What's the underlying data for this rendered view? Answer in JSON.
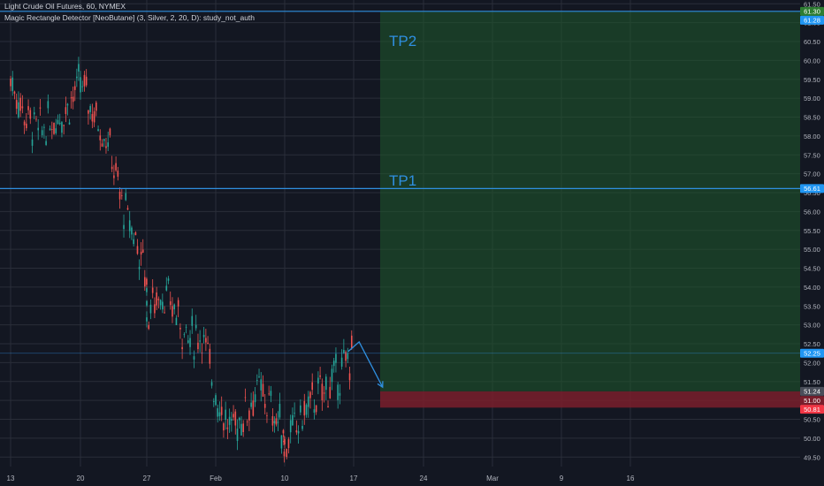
{
  "header": {
    "symbol_title": "Light Crude Oil Futures, 60, NYMEX",
    "indicator_title": "Magic Rectangle Detector [NeoButane] (3, Silver, 2, 20, D): study_not_auth"
  },
  "colors": {
    "background": "#131722",
    "grid": "#2a2e39",
    "candle_up": "#26a69a",
    "candle_down": "#ef5350",
    "target_fill": "#1f5a2b",
    "stop_fill": "#7a1e2c",
    "level_line": "#2f8fe0",
    "annotation_text": "#2f8fe0",
    "axis_text": "#b2b5be",
    "badge_blue": "#2196f3",
    "badge_red": "#f23645",
    "badge_gray": "#4a4e5a",
    "badge_green": "#2e7d32"
  },
  "chart_data": {
    "type": "candlestick",
    "title": "Light Crude Oil Futures, 60, NYMEX",
    "ylim": [
      49.25,
      61.6
    ],
    "y_ticks": [
      "49.50",
      "50.00",
      "50.50",
      "51.00",
      "51.50",
      "52.00",
      "52.50",
      "53.00",
      "53.50",
      "54.00",
      "54.50",
      "55.00",
      "55.50",
      "56.00",
      "56.50",
      "57.00",
      "57.50",
      "58.00",
      "58.50",
      "59.00",
      "59.50",
      "60.00",
      "60.50",
      "61.00",
      "61.50"
    ],
    "x_ticks": [
      "13",
      "20",
      "27",
      "Feb",
      "10",
      "17",
      "24",
      "Mar",
      "9",
      "16"
    ],
    "price_path": [
      [
        "13",
        59.5
      ],
      [
        "14",
        58.6
      ],
      [
        "15",
        58.1
      ],
      [
        "16",
        58.4
      ],
      [
        "17",
        58.7
      ],
      [
        "20",
        59.4
      ],
      [
        "21",
        58.6
      ],
      [
        "22",
        57.9
      ],
      [
        "23",
        56.2
      ],
      [
        "24",
        55.3
      ],
      [
        "25",
        54.2
      ],
      [
        "27",
        53.3
      ],
      [
        "28",
        53.9
      ],
      [
        "29",
        53.4
      ],
      [
        "30",
        52.6
      ],
      [
        "31",
        52.8
      ],
      [
        "Feb",
        51.2
      ],
      [
        "Feb 3",
        50.2
      ],
      [
        "Feb 4",
        50.6
      ],
      [
        "Feb 5",
        51.3
      ],
      [
        "Feb 6",
        50.8
      ],
      [
        "Feb 7",
        50.2
      ],
      [
        "10",
        49.8
      ],
      [
        "Feb 11",
        50.4
      ],
      [
        "Feb 12",
        51.0
      ],
      [
        "Feb 13",
        51.3
      ],
      [
        "Feb 14",
        51.7
      ],
      [
        "17",
        52.3
      ]
    ],
    "horizontal_levels": [
      {
        "label": "TP2",
        "price": 61.3
      },
      {
        "label": "TP1",
        "price": 56.61
      },
      {
        "label": "",
        "price": 52.25
      }
    ],
    "target_zone": {
      "from_price": 51.24,
      "to_price": 61.3
    },
    "stop_zone": {
      "from_price": 50.81,
      "to_price": 51.24
    },
    "annotations": [
      "TP2",
      "TP1"
    ],
    "projection_path": [
      [
        "17",
        52.3
      ],
      [
        "18",
        52.55
      ],
      [
        "19",
        51.35
      ]
    ],
    "price_badges": [
      {
        "text": "61.30",
        "price": 61.3,
        "color": "#2e7d32"
      },
      {
        "text": "61.28",
        "price": 61.28,
        "color": "#2196f3"
      },
      {
        "text": "56.61",
        "price": 56.61,
        "color": "#2196f3"
      },
      {
        "text": "52.25",
        "price": 52.25,
        "color": "#2196f3"
      },
      {
        "text": "51.24",
        "price": 51.24,
        "color": "#4a4e5a"
      },
      {
        "text": "51.00",
        "price": 51.0,
        "color": "#7a1e2c"
      },
      {
        "text": "50.81",
        "price": 50.81,
        "color": "#f23645"
      }
    ],
    "grid": true
  }
}
